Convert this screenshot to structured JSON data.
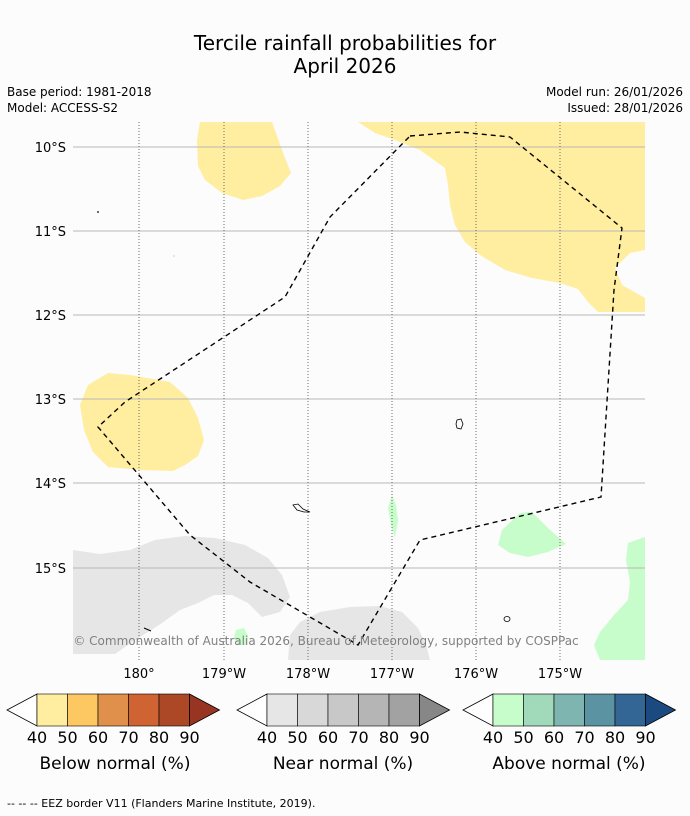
{
  "title": {
    "line1": "Tercile rainfall probabilities for",
    "line2": "April 2026"
  },
  "meta": {
    "base_period": "Base period: 1981-2018",
    "model": "Model: ACCESS-S2",
    "model_run": "Model run: 26/01/2026",
    "issued": "Issued: 28/01/2026"
  },
  "map": {
    "lat_labels": [
      "10°S",
      "11°S",
      "12°S",
      "13°S",
      "14°S",
      "15°S"
    ],
    "lon_labels": [
      "180°",
      "179°W",
      "178°W",
      "177°W",
      "176°W",
      "175°W"
    ],
    "copyright": "© Commonwealth of Australia 2026, Bureau of Meteorology, supported by COSPPac"
  },
  "colorbars": [
    {
      "label": "Below normal (%)",
      "ticks": [
        "40",
        "50",
        "60",
        "70",
        "80",
        "90"
      ],
      "colors": [
        "#ffeda0",
        "#fdc762",
        "#e0904a",
        "#cf6432",
        "#ad4826",
        "#973522"
      ]
    },
    {
      "label": "Near normal (%)",
      "ticks": [
        "40",
        "50",
        "60",
        "70",
        "80",
        "90"
      ],
      "colors": [
        "#e6e6e6",
        "#d8d8d8",
        "#c8c8c8",
        "#b5b5b5",
        "#a2a2a2",
        "#878787"
      ]
    },
    {
      "label": "Above normal (%)",
      "ticks": [
        "40",
        "50",
        "60",
        "70",
        "80",
        "90"
      ],
      "colors": [
        "#c7fdcb",
        "#a1d9bb",
        "#7fb5b0",
        "#5c93a3",
        "#336695",
        "#1a4a7f"
      ]
    }
  ],
  "footer": "-- -- -- EEZ border V11 (Flanders Marine Institute, 2019).",
  "colors": {
    "below": "#ffeda0",
    "near": "#e6e6e6",
    "above": "#c7fdcb"
  }
}
